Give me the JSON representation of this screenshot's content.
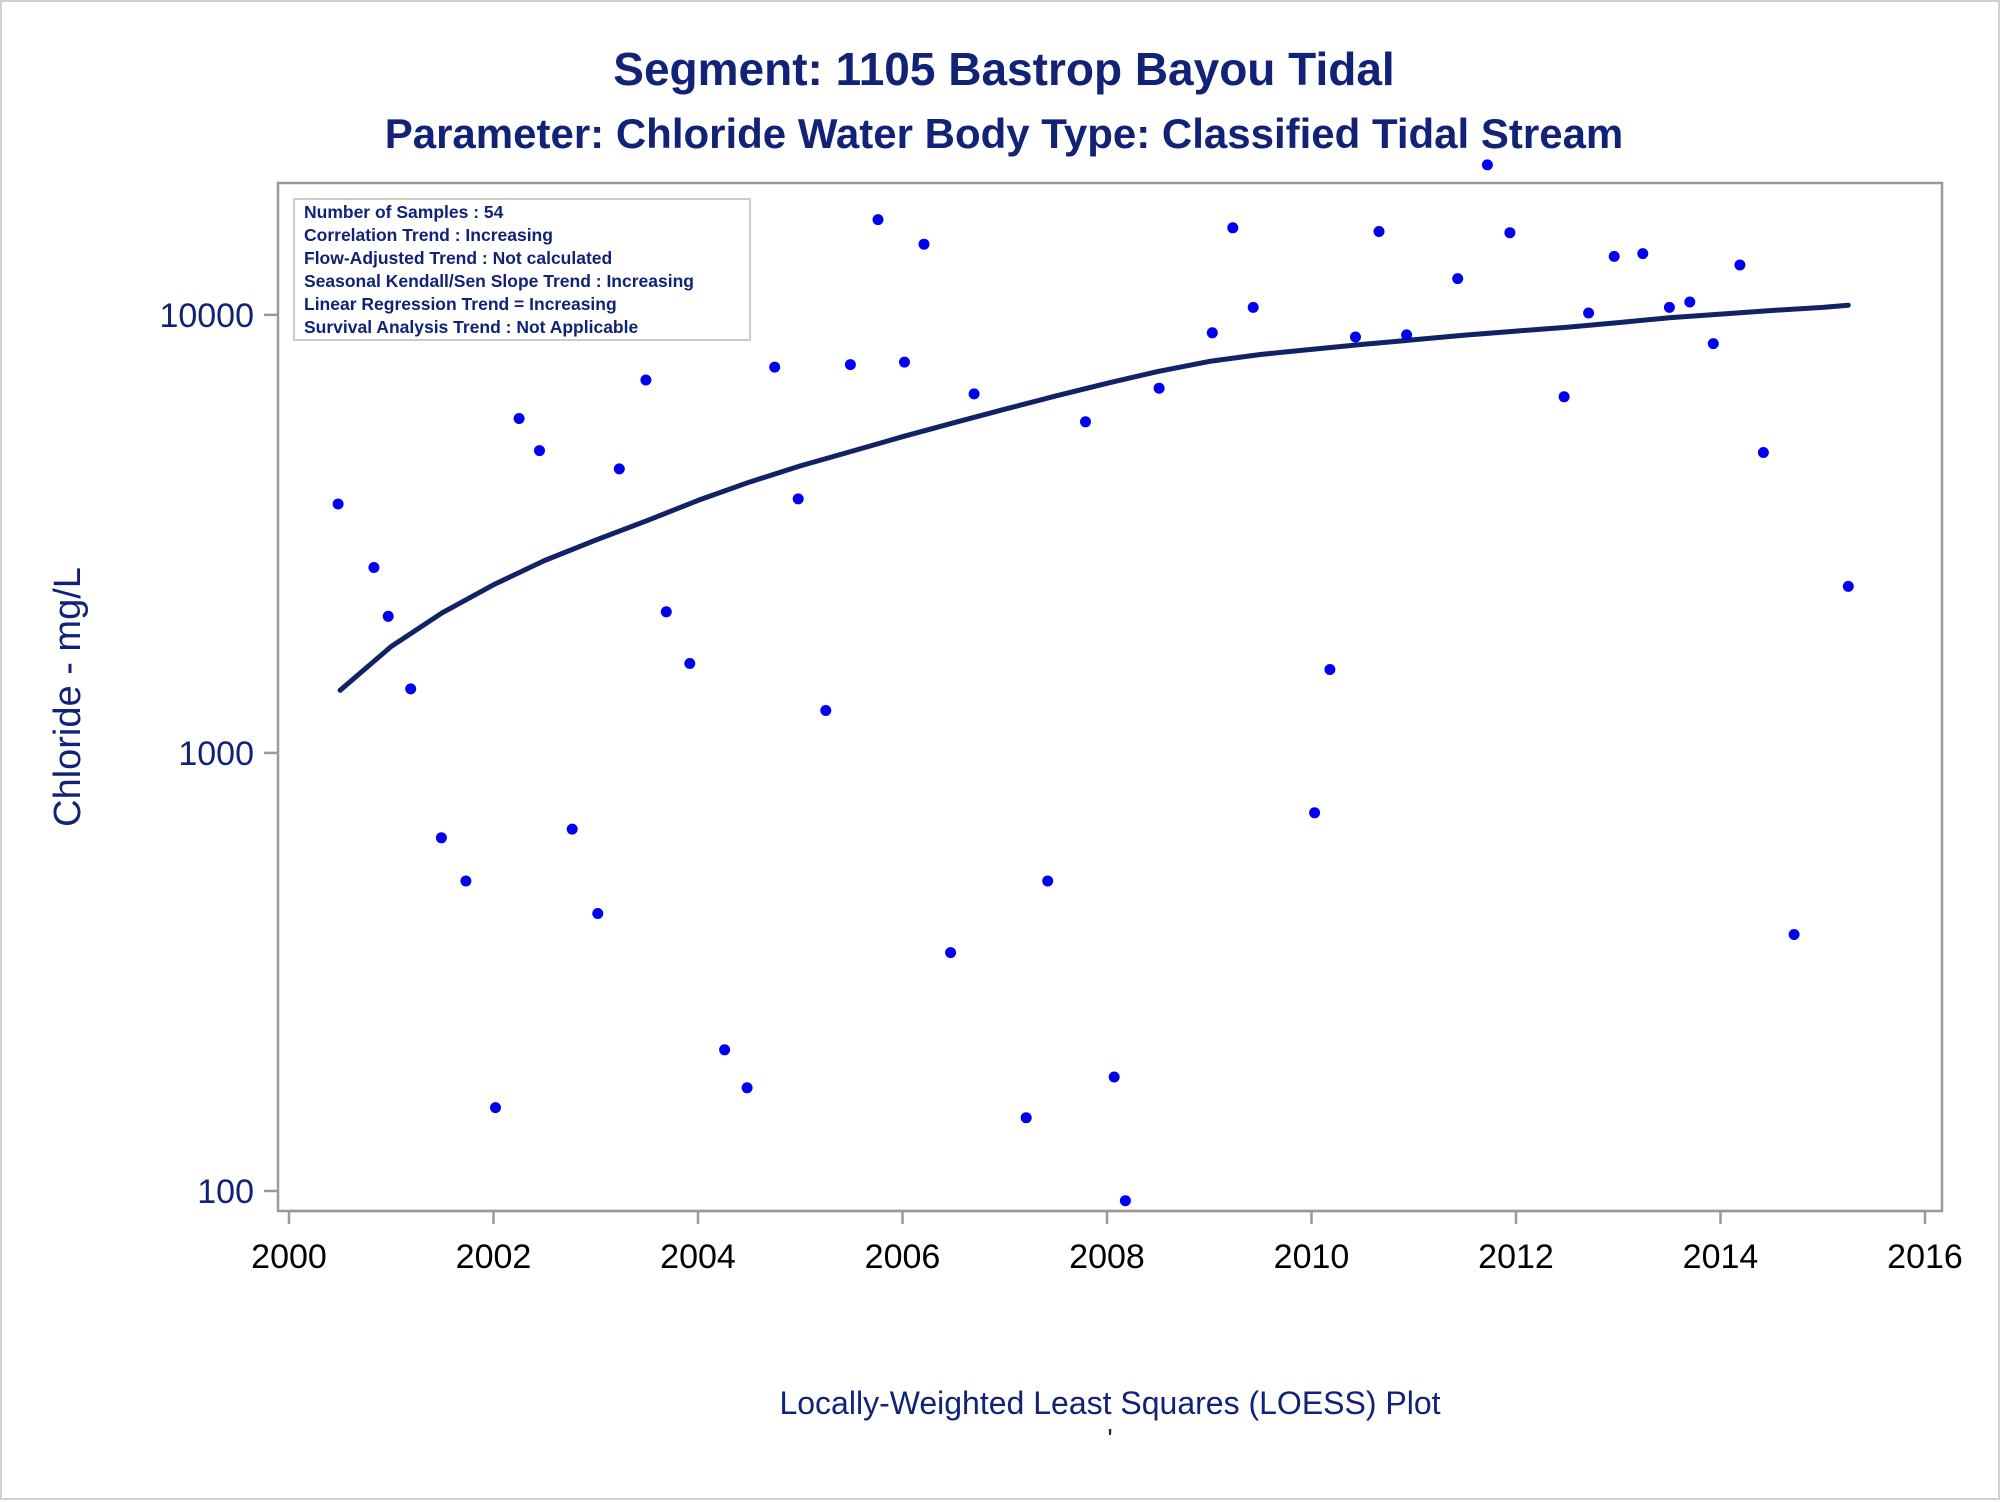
{
  "chart_data": {
    "type": "scatter",
    "title": "Segment: 1105  Bastrop Bayou Tidal",
    "subtitle": "Parameter: Chloride   Water Body Type: Classified Tidal Stream",
    "xlabel": "",
    "ylabel": "Chloride - mg/L",
    "footnote": "Locally-Weighted Least Squares (LOESS) Plot",
    "footnote_mark": "'",
    "xlim": [
      2000,
      2016
    ],
    "ylim": [
      90,
      20000
    ],
    "yscale": "log",
    "x_ticks": [
      2000,
      2002,
      2004,
      2006,
      2008,
      2010,
      2012,
      2014,
      2016
    ],
    "x_tick_labels": [
      "2000",
      "2002",
      "2004",
      "2006",
      "2008",
      "2010",
      "2012",
      "2014",
      "2016"
    ],
    "y_ticks": [
      100,
      1000,
      10000
    ],
    "y_tick_labels": [
      "100",
      "1000",
      "10000"
    ],
    "grid": false,
    "legend": "none",
    "inset_box": {
      "placement": "top-left",
      "lines": [
        "Number of Samples : 54",
        "Correlation Trend : Increasing",
        "Flow-Adjusted Trend : Not calculated",
        "Seasonal Kendall/Sen Slope Trend : Increasing",
        "Linear Regression Trend = Increasing",
        "Survival Analysis Trend : Not Applicable"
      ]
    },
    "colors": {
      "points": "#0000ee",
      "loess_line": "#112266",
      "text": "#112277",
      "frame": "#999999"
    },
    "series": [
      {
        "kind": "points",
        "points": [
          {
            "x": 2000.48,
            "y": 3700
          },
          {
            "x": 2000.83,
            "y": 2650
          },
          {
            "x": 2000.97,
            "y": 2050
          },
          {
            "x": 2001.19,
            "y": 1400
          },
          {
            "x": 2001.49,
            "y": 640
          },
          {
            "x": 2001.73,
            "y": 510
          },
          {
            "x": 2002.02,
            "y": 155
          },
          {
            "x": 2002.25,
            "y": 5800
          },
          {
            "x": 2002.45,
            "y": 4900
          },
          {
            "x": 2002.77,
            "y": 670
          },
          {
            "x": 2003.02,
            "y": 430
          },
          {
            "x": 2003.23,
            "y": 4450
          },
          {
            "x": 2003.49,
            "y": 7100
          },
          {
            "x": 2003.69,
            "y": 2100
          },
          {
            "x": 2003.92,
            "y": 1600
          },
          {
            "x": 2004.26,
            "y": 210
          },
          {
            "x": 2004.48,
            "y": 172
          },
          {
            "x": 2004.75,
            "y": 7600
          },
          {
            "x": 2004.98,
            "y": 3800
          },
          {
            "x": 2005.25,
            "y": 1250
          },
          {
            "x": 2005.49,
            "y": 7700
          },
          {
            "x": 2005.76,
            "y": 16500
          },
          {
            "x": 2006.02,
            "y": 7800
          },
          {
            "x": 2006.21,
            "y": 14500
          },
          {
            "x": 2006.47,
            "y": 350
          },
          {
            "x": 2006.7,
            "y": 6600
          },
          {
            "x": 2007.21,
            "y": 147
          },
          {
            "x": 2007.42,
            "y": 510
          },
          {
            "x": 2007.79,
            "y": 5700
          },
          {
            "x": 2008.07,
            "y": 182
          },
          {
            "x": 2008.18,
            "y": 95
          },
          {
            "x": 2008.51,
            "y": 6800
          },
          {
            "x": 2009.03,
            "y": 9100
          },
          {
            "x": 2009.23,
            "y": 15800
          },
          {
            "x": 2009.43,
            "y": 10400
          },
          {
            "x": 2010.03,
            "y": 730
          },
          {
            "x": 2010.18,
            "y": 1550
          },
          {
            "x": 2010.43,
            "y": 8900
          },
          {
            "x": 2010.66,
            "y": 15500
          },
          {
            "x": 2010.93,
            "y": 9000
          },
          {
            "x": 2011.43,
            "y": 12100
          },
          {
            "x": 2011.72,
            "y": 22000
          },
          {
            "x": 2011.94,
            "y": 15400
          },
          {
            "x": 2012.47,
            "y": 6500
          },
          {
            "x": 2012.71,
            "y": 10100
          },
          {
            "x": 2012.96,
            "y": 13600
          },
          {
            "x": 2013.24,
            "y": 13800
          },
          {
            "x": 2013.5,
            "y": 10400
          },
          {
            "x": 2013.7,
            "y": 10700
          },
          {
            "x": 2013.93,
            "y": 8600
          },
          {
            "x": 2014.19,
            "y": 13000
          },
          {
            "x": 2014.42,
            "y": 4850
          },
          {
            "x": 2014.72,
            "y": 385
          },
          {
            "x": 2015.25,
            "y": 2400
          }
        ]
      },
      {
        "kind": "line",
        "points": [
          {
            "x": 2000.5,
            "y": 1390
          },
          {
            "x": 2001.0,
            "y": 1750
          },
          {
            "x": 2001.5,
            "y": 2090
          },
          {
            "x": 2002.0,
            "y": 2420
          },
          {
            "x": 2002.5,
            "y": 2750
          },
          {
            "x": 2003.0,
            "y": 3060
          },
          {
            "x": 2003.5,
            "y": 3390
          },
          {
            "x": 2004.0,
            "y": 3770
          },
          {
            "x": 2004.5,
            "y": 4150
          },
          {
            "x": 2005.0,
            "y": 4520
          },
          {
            "x": 2005.5,
            "y": 4880
          },
          {
            "x": 2006.0,
            "y": 5270
          },
          {
            "x": 2006.5,
            "y": 5670
          },
          {
            "x": 2007.0,
            "y": 6090
          },
          {
            "x": 2007.5,
            "y": 6530
          },
          {
            "x": 2008.0,
            "y": 6980
          },
          {
            "x": 2008.5,
            "y": 7430
          },
          {
            "x": 2009.0,
            "y": 7830
          },
          {
            "x": 2009.5,
            "y": 8120
          },
          {
            "x": 2010.0,
            "y": 8340
          },
          {
            "x": 2010.5,
            "y": 8560
          },
          {
            "x": 2011.0,
            "y": 8770
          },
          {
            "x": 2011.5,
            "y": 8990
          },
          {
            "x": 2012.0,
            "y": 9180
          },
          {
            "x": 2012.5,
            "y": 9370
          },
          {
            "x": 2013.0,
            "y": 9600
          },
          {
            "x": 2013.5,
            "y": 9850
          },
          {
            "x": 2014.0,
            "y": 10040
          },
          {
            "x": 2014.5,
            "y": 10230
          },
          {
            "x": 2015.0,
            "y": 10400
          },
          {
            "x": 2015.25,
            "y": 10520
          }
        ]
      }
    ]
  }
}
